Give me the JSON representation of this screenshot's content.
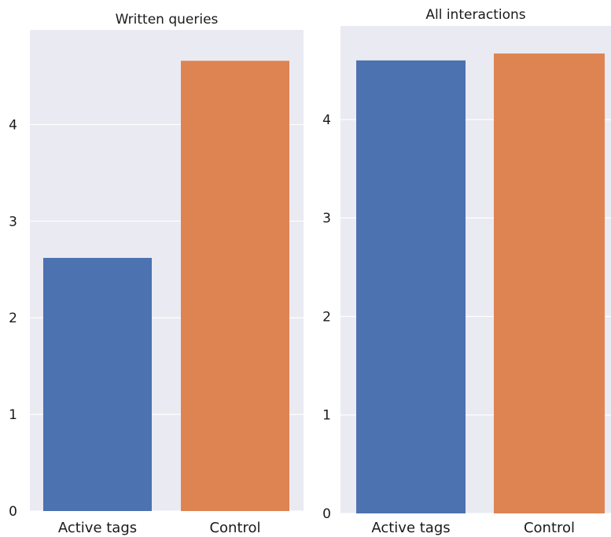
{
  "chart_data": [
    {
      "type": "bar",
      "title": "Written queries",
      "categories": [
        "Active tags",
        "Control"
      ],
      "values": [
        2.62,
        4.66
      ],
      "colors": [
        "#4c72b0",
        "#dd8452"
      ],
      "ylim": [
        0,
        4.98
      ],
      "yticks": [
        0,
        1,
        2,
        3,
        4
      ],
      "grid": true
    },
    {
      "type": "bar",
      "title": "All interactions",
      "categories": [
        "Active tags",
        "Control"
      ],
      "values": [
        4.6,
        4.67
      ],
      "colors": [
        "#4c72b0",
        "#dd8452"
      ],
      "ylim": [
        0,
        4.95
      ],
      "yticks": [
        0,
        1,
        2,
        3,
        4
      ],
      "grid": true
    }
  ]
}
